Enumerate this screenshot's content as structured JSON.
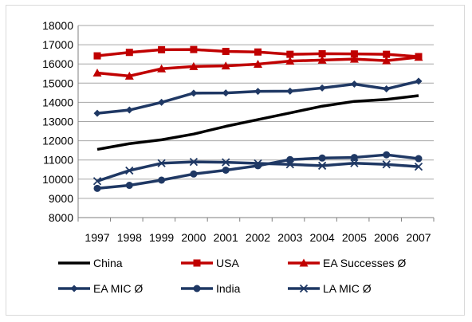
{
  "chart_data": {
    "type": "line",
    "title": "",
    "xlabel": "",
    "ylabel": "",
    "x": [
      1997,
      1998,
      1999,
      2000,
      2001,
      2002,
      2003,
      2004,
      2005,
      2006,
      2007
    ],
    "ylim": [
      8000,
      18000
    ],
    "yticks": [
      8000,
      9000,
      10000,
      11000,
      12000,
      13000,
      14000,
      15000,
      16000,
      17000,
      18000
    ],
    "grid": "horizontal",
    "legend_position": "bottom",
    "series": [
      {
        "name": "China",
        "color": "#000000",
        "marker": "none",
        "values": [
          11550,
          11850,
          12050,
          12350,
          12750,
          13100,
          13450,
          13800,
          14050,
          14150,
          14350
        ]
      },
      {
        "name": "USA",
        "color": "#c00000",
        "marker": "square",
        "values": [
          16420,
          16600,
          16740,
          16750,
          16650,
          16620,
          16500,
          16530,
          16520,
          16500,
          16380
        ]
      },
      {
        "name": "EA Successes Ø",
        "color": "#c00000",
        "marker": "triangle",
        "values": [
          15530,
          15370,
          15750,
          15870,
          15900,
          15990,
          16150,
          16200,
          16250,
          16170,
          16350
        ]
      },
      {
        "name": "EA MIC Ø",
        "color": "#1f3864",
        "marker": "diamond",
        "values": [
          13430,
          13600,
          14000,
          14480,
          14490,
          14570,
          14580,
          14750,
          14950,
          14700,
          15100
        ]
      },
      {
        "name": "India",
        "color": "#1f3864",
        "marker": "circle",
        "values": [
          9520,
          9680,
          9950,
          10270,
          10470,
          10700,
          11020,
          11100,
          11130,
          11270,
          11070
        ]
      },
      {
        "name": "LA MIC Ø",
        "color": "#1f3864",
        "marker": "x",
        "values": [
          9900,
          10450,
          10830,
          10900,
          10880,
          10820,
          10770,
          10700,
          10830,
          10770,
          10650
        ]
      }
    ]
  }
}
